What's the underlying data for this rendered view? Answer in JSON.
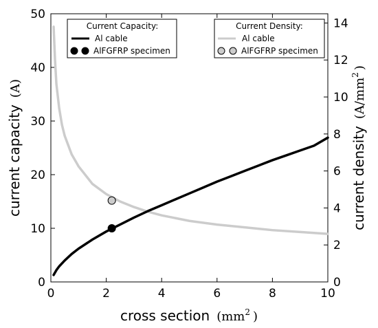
{
  "chart_data": {
    "type": "line",
    "x_axis": {
      "label": "cross section",
      "unit": "mm",
      "unit_sup": "2",
      "lim": [
        0,
        10
      ],
      "ticks": [
        0,
        2,
        4,
        6,
        8,
        10
      ]
    },
    "y_left": {
      "label": "current capacity",
      "unit": "A",
      "lim": [
        0,
        50
      ],
      "ticks": [
        0,
        10,
        20,
        30,
        40,
        50
      ]
    },
    "y_right": {
      "label": "current density",
      "unit": "A/mm",
      "unit_sup": "2",
      "lim": [
        0,
        14.5
      ],
      "ticks": [
        0,
        2,
        4,
        6,
        8,
        10,
        12,
        14
      ]
    },
    "legend_capacity": {
      "title": "Current Capacity:",
      "line_label": "Al cable",
      "marker_label": "AlFGFRP specimen",
      "placement": "top-left"
    },
    "legend_density": {
      "title": "Current Density:",
      "line_label": "Al cable",
      "marker_label": "AlFGFRP specimen",
      "placement": "top-right"
    },
    "series": [
      {
        "name": "Al cable",
        "axis": "left",
        "color": "#000000",
        "points": [
          [
            0.1,
            1.3
          ],
          [
            0.2,
            2.2
          ],
          [
            0.3,
            2.9
          ],
          [
            0.5,
            4.0
          ],
          [
            0.75,
            5.2
          ],
          [
            1.0,
            6.2
          ],
          [
            1.5,
            7.9
          ],
          [
            2.0,
            9.4
          ],
          [
            2.5,
            10.7
          ],
          [
            3.0,
            12.0
          ],
          [
            3.5,
            13.2
          ],
          [
            4.0,
            14.3
          ],
          [
            4.5,
            15.4
          ],
          [
            5.0,
            16.5
          ],
          [
            5.5,
            17.6
          ],
          [
            6.0,
            18.7
          ],
          [
            6.5,
            19.7
          ],
          [
            7.0,
            20.7
          ],
          [
            7.5,
            21.7
          ],
          [
            8.0,
            22.7
          ],
          [
            8.5,
            23.6
          ],
          [
            9.0,
            24.5
          ],
          [
            9.5,
            25.4
          ],
          [
            10.0,
            26.9
          ]
        ]
      },
      {
        "name": "Al cable",
        "axis": "right",
        "color": "#cccccc",
        "points": [
          [
            0.1,
            13.8
          ],
          [
            0.15,
            12.0
          ],
          [
            0.2,
            10.7
          ],
          [
            0.3,
            9.4
          ],
          [
            0.4,
            8.5
          ],
          [
            0.5,
            7.9
          ],
          [
            0.75,
            6.9
          ],
          [
            1.0,
            6.25
          ],
          [
            1.5,
            5.3
          ],
          [
            2.0,
            4.75
          ],
          [
            2.5,
            4.35
          ],
          [
            3.0,
            4.05
          ],
          [
            3.5,
            3.8
          ],
          [
            4.0,
            3.6
          ],
          [
            5.0,
            3.3
          ],
          [
            6.0,
            3.1
          ],
          [
            7.0,
            2.95
          ],
          [
            8.0,
            2.8
          ],
          [
            9.0,
            2.7
          ],
          [
            10.0,
            2.6
          ]
        ]
      }
    ],
    "markers": [
      {
        "name": "AlFGFRP specimen",
        "axis": "left",
        "x": 2.2,
        "y": 10.0,
        "color": "#000000"
      },
      {
        "name": "AlFGFRP specimen",
        "axis": "right",
        "x": 2.2,
        "y": 4.4,
        "color": "#cccccc"
      }
    ],
    "grid": false
  }
}
